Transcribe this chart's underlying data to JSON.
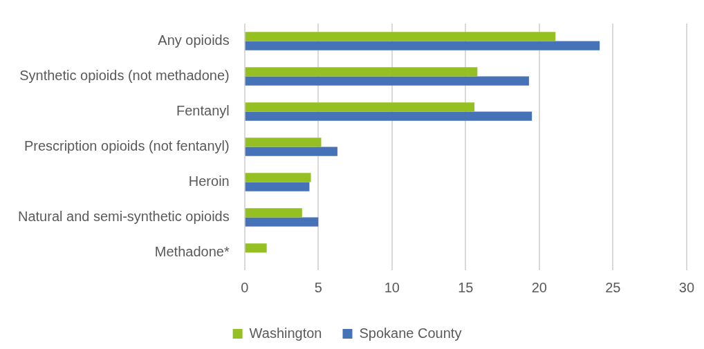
{
  "chart_data": {
    "type": "bar",
    "orientation": "horizontal",
    "categories": [
      "Any opioids",
      "Synthetic opioids (not methadone)",
      "Fentanyl",
      "Prescription opioids (not fentanyl)",
      "Heroin",
      "Natural and semi-synthetic opioids",
      "Methadone*"
    ],
    "series": [
      {
        "name": "Washington",
        "color": "#95c022",
        "values": [
          21.1,
          15.8,
          15.6,
          5.2,
          4.5,
          3.9,
          1.5
        ]
      },
      {
        "name": "Spokane County",
        "color": "#4672b8",
        "values": [
          24.1,
          19.3,
          19.5,
          6.3,
          4.4,
          5.0,
          null
        ]
      }
    ],
    "xlim": [
      0,
      30
    ],
    "xticks": [
      0,
      5,
      10,
      15,
      20,
      25,
      30
    ],
    "grid": "x",
    "legend": "bottom"
  }
}
